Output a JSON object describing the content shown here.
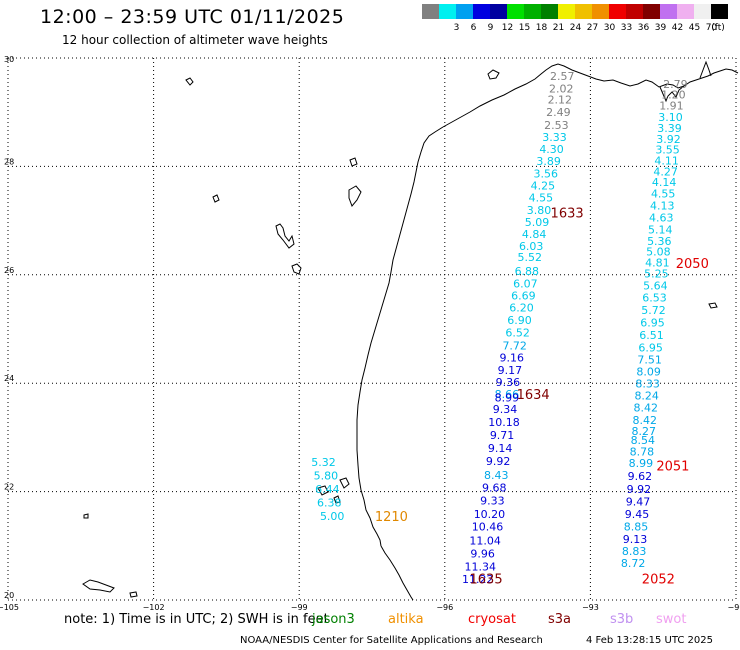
{
  "header": {
    "title": "12:00 – 23:59 UTC 01/11/2025",
    "subtitle": "12 hour collection of altimeter wave heights"
  },
  "legend": {
    "unit": "(ft)",
    "bins": [
      {
        "color": "#808080",
        "label": ""
      },
      {
        "color": "#00f0f0",
        "label": "3"
      },
      {
        "color": "#00a0f0",
        "label": "6"
      },
      {
        "color": "#0000e0",
        "label": "9"
      },
      {
        "color": "#0000a0",
        "label": "12"
      },
      {
        "color": "#00e000",
        "label": "15"
      },
      {
        "color": "#00b000",
        "label": "18"
      },
      {
        "color": "#008000",
        "label": "21"
      },
      {
        "color": "#f0f000",
        "label": "24"
      },
      {
        "color": "#f0c000",
        "label": "27"
      },
      {
        "color": "#f09000",
        "label": "30"
      },
      {
        "color": "#f00000",
        "label": "33"
      },
      {
        "color": "#c00000",
        "label": "36"
      },
      {
        "color": "#800000",
        "label": "39"
      },
      {
        "color": "#c070f0",
        "label": "42"
      },
      {
        "color": "#f0b0f0",
        "label": "45"
      },
      {
        "color": "#f0f0f0",
        "label": "70"
      },
      {
        "color": "#000000",
        "label": ""
      }
    ]
  },
  "axes": {
    "lon_ticks": [
      "−105",
      "−102",
      "−99",
      "−96",
      "−93",
      "−90"
    ],
    "lat_ticks": [
      "30",
      "28",
      "26",
      "24",
      "22",
      "20"
    ]
  },
  "tracks": [
    {
      "name": "track-east",
      "points": [
        {
          "lat": 29.52,
          "lon": -91.25,
          "v": "2.79",
          "c": "#808080"
        },
        {
          "lat": 29.33,
          "lon": -91.29,
          "v": "1.20",
          "c": "#808080"
        },
        {
          "lat": 29.12,
          "lon": -91.33,
          "v": "1.91",
          "c": "#808080"
        },
        {
          "lat": 28.91,
          "lon": -91.35,
          "v": "3.10",
          "c": "#00c8e8"
        },
        {
          "lat": 28.71,
          "lon": -91.37,
          "v": "3.39",
          "c": "#00c8e8"
        },
        {
          "lat": 28.51,
          "lon": -91.39,
          "v": "3.92",
          "c": "#00c8e8"
        },
        {
          "lat": 28.31,
          "lon": -91.41,
          "v": "3.55",
          "c": "#00c8e8"
        },
        {
          "lat": 28.11,
          "lon": -91.43,
          "v": "4.11",
          "c": "#00c8e8"
        },
        {
          "lat": 27.91,
          "lon": -91.45,
          "v": "4.27",
          "c": "#00c8e8"
        },
        {
          "lat": 27.71,
          "lon": -91.48,
          "v": "4.14",
          "c": "#00c8e8"
        },
        {
          "lat": 27.5,
          "lon": -91.5,
          "v": "4.55",
          "c": "#00c8e8"
        },
        {
          "lat": 27.28,
          "lon": -91.52,
          "v": "4.13",
          "c": "#00c8e8"
        },
        {
          "lat": 27.06,
          "lon": -91.54,
          "v": "4.63",
          "c": "#00c8e8"
        },
        {
          "lat": 26.84,
          "lon": -91.56,
          "v": "5.14",
          "c": "#00c8e8"
        },
        {
          "lat": 26.62,
          "lon": -91.58,
          "v": "5.36",
          "c": "#00c8e8"
        },
        {
          "lat": 26.43,
          "lon": -91.6,
          "v": "5.08",
          "c": "#00c8e8"
        },
        {
          "lat": 26.23,
          "lon": -91.62,
          "v": "4.81",
          "c": "#00c8e8"
        },
        {
          "lat": 26.02,
          "lon": -91.64,
          "v": "5.25",
          "c": "#00c8e8"
        },
        {
          "lat": 25.8,
          "lon": -91.66,
          "v": "5.64",
          "c": "#00c8e8"
        },
        {
          "lat": 25.58,
          "lon": -91.68,
          "v": "6.53",
          "c": "#00c8e8"
        },
        {
          "lat": 25.35,
          "lon": -91.7,
          "v": "5.72",
          "c": "#00c8e8"
        },
        {
          "lat": 25.12,
          "lon": -91.72,
          "v": "6.95",
          "c": "#00c8e8"
        },
        {
          "lat": 24.89,
          "lon": -91.74,
          "v": "6.51",
          "c": "#00c8e8"
        },
        {
          "lat": 24.66,
          "lon": -91.76,
          "v": "6.95",
          "c": "#00c8e8"
        },
        {
          "lat": 24.44,
          "lon": -91.78,
          "v": "7.51",
          "c": "#00a8e8"
        },
        {
          "lat": 24.22,
          "lon": -91.8,
          "v": "8.09",
          "c": "#00a8e8"
        },
        {
          "lat": 23.99,
          "lon": -91.82,
          "v": "8.33",
          "c": "#00a8e8"
        },
        {
          "lat": 23.77,
          "lon": -91.84,
          "v": "8.24",
          "c": "#00a8e8"
        },
        {
          "lat": 23.55,
          "lon": -91.86,
          "v": "8.42",
          "c": "#00a8e8"
        },
        {
          "lat": 23.32,
          "lon": -91.88,
          "v": "8.42",
          "c": "#00a8e8"
        },
        {
          "lat": 23.12,
          "lon": -91.9,
          "v": "8.27",
          "c": "#00a8e8"
        },
        {
          "lat": 22.95,
          "lon": -91.92,
          "v": "8.54",
          "c": "#00a8e8"
        },
        {
          "lat": 22.74,
          "lon": -91.94,
          "v": "8.78",
          "c": "#00a8e8"
        },
        {
          "lat": 22.53,
          "lon": -91.96,
          "v": "8.99",
          "c": "#00a8e8"
        },
        {
          "lat": 22.29,
          "lon": -91.98,
          "v": "9.62",
          "c": "#0000d8"
        },
        {
          "lat": 22.05,
          "lon": -92.0,
          "v": "9.92",
          "c": "#0000d8"
        },
        {
          "lat": 21.82,
          "lon": -92.02,
          "v": "9.47",
          "c": "#0000d8"
        },
        {
          "lat": 21.59,
          "lon": -92.04,
          "v": "9.45",
          "c": "#0000d8"
        },
        {
          "lat": 21.36,
          "lon": -92.06,
          "v": "8.85",
          "c": "#00a8e8"
        },
        {
          "lat": 21.13,
          "lon": -92.08,
          "v": "9.13",
          "c": "#0000d8"
        },
        {
          "lat": 20.9,
          "lon": -92.1,
          "v": "8.83",
          "c": "#00a8e8"
        },
        {
          "lat": 20.68,
          "lon": -92.12,
          "v": "8.72",
          "c": "#00a8e8"
        }
      ]
    },
    {
      "name": "track-center",
      "points": [
        {
          "lat": 29.67,
          "lon": -93.58,
          "v": "2.57",
          "c": "#808080"
        },
        {
          "lat": 29.44,
          "lon": -93.6,
          "v": "2.02",
          "c": "#808080"
        },
        {
          "lat": 29.23,
          "lon": -93.63,
          "v": "2.12",
          "c": "#808080"
        },
        {
          "lat": 29.0,
          "lon": -93.66,
          "v": "2.49",
          "c": "#808080"
        },
        {
          "lat": 28.76,
          "lon": -93.7,
          "v": "2.53",
          "c": "#808080"
        },
        {
          "lat": 28.54,
          "lon": -93.74,
          "v": "3.33",
          "c": "#00c8e8"
        },
        {
          "lat": 28.32,
          "lon": -93.8,
          "v": "4.30",
          "c": "#00c8e8"
        },
        {
          "lat": 28.1,
          "lon": -93.86,
          "v": "3.89",
          "c": "#00c8e8"
        },
        {
          "lat": 27.87,
          "lon": -93.92,
          "v": "3.56",
          "c": "#00c8e8"
        },
        {
          "lat": 27.65,
          "lon": -93.98,
          "v": "4.25",
          "c": "#00c8e8"
        },
        {
          "lat": 27.43,
          "lon": -94.02,
          "v": "4.55",
          "c": "#00c8e8"
        },
        {
          "lat": 27.2,
          "lon": -94.06,
          "v": "3.80",
          "c": "#00c8e8"
        },
        {
          "lat": 26.97,
          "lon": -94.1,
          "v": "5.09",
          "c": "#00c8e8"
        },
        {
          "lat": 26.75,
          "lon": -94.16,
          "v": "4.84",
          "c": "#00c8e8"
        },
        {
          "lat": 26.53,
          "lon": -94.22,
          "v": "6.03",
          "c": "#00c8e8"
        },
        {
          "lat": 26.33,
          "lon": -94.25,
          "v": "5.52",
          "c": "#00c8e8"
        },
        {
          "lat": 26.07,
          "lon": -94.31,
          "v": "6.88",
          "c": "#00c8e8"
        },
        {
          "lat": 25.84,
          "lon": -94.34,
          "v": "6.07",
          "c": "#00c8e8"
        },
        {
          "lat": 25.62,
          "lon": -94.38,
          "v": "6.69",
          "c": "#00c8e8"
        },
        {
          "lat": 25.4,
          "lon": -94.42,
          "v": "6.20",
          "c": "#00c8e8"
        },
        {
          "lat": 25.17,
          "lon": -94.46,
          "v": "6.90",
          "c": "#00c8e8"
        },
        {
          "lat": 24.94,
          "lon": -94.5,
          "v": "6.52",
          "c": "#00c8e8"
        },
        {
          "lat": 24.7,
          "lon": -94.56,
          "v": "7.72",
          "c": "#00a8e8"
        },
        {
          "lat": 24.47,
          "lon": -94.62,
          "v": "9.16",
          "c": "#0000d8"
        },
        {
          "lat": 24.24,
          "lon": -94.66,
          "v": "9.17",
          "c": "#0000d8"
        },
        {
          "lat": 24.02,
          "lon": -94.7,
          "v": "9.36",
          "c": "#0000d8"
        },
        {
          "lat": 23.8,
          "lon": -94.72,
          "v": "8.66",
          "c": "#00a8e8"
        },
        {
          "lat": 23.74,
          "lon": -94.72,
          "v": "8.99",
          "c": "#0000d8"
        },
        {
          "lat": 23.52,
          "lon": -94.76,
          "v": "9.34",
          "c": "#0000d8"
        },
        {
          "lat": 23.28,
          "lon": -94.78,
          "v": "10.18",
          "c": "#0000d8"
        },
        {
          "lat": 23.04,
          "lon": -94.82,
          "v": "9.71",
          "c": "#0000d8"
        },
        {
          "lat": 22.8,
          "lon": -94.86,
          "v": "9.14",
          "c": "#0000d8"
        },
        {
          "lat": 22.56,
          "lon": -94.9,
          "v": "9.92",
          "c": "#0000d8"
        },
        {
          "lat": 22.31,
          "lon": -94.94,
          "v": "8.43",
          "c": "#00a8e8"
        },
        {
          "lat": 22.08,
          "lon": -94.98,
          "v": "9.68",
          "c": "#0000d8"
        },
        {
          "lat": 21.84,
          "lon": -95.02,
          "v": "9.33",
          "c": "#0000d8"
        },
        {
          "lat": 21.59,
          "lon": -95.08,
          "v": "10.20",
          "c": "#0000d8"
        },
        {
          "lat": 21.36,
          "lon": -95.12,
          "v": "10.46",
          "c": "#0000d8"
        },
        {
          "lat": 21.1,
          "lon": -95.17,
          "v": "11.04",
          "c": "#0000d8"
        },
        {
          "lat": 20.86,
          "lon": -95.22,
          "v": "9.96",
          "c": "#0000d8"
        },
        {
          "lat": 20.62,
          "lon": -95.27,
          "v": "11.34",
          "c": "#0000d8"
        },
        {
          "lat": 20.39,
          "lon": -95.32,
          "v": "11.22",
          "c": "#0000d8"
        }
      ]
    },
    {
      "name": "track-coastal",
      "points": [
        {
          "lat": 22.55,
          "lon": -98.5,
          "v": "5.32",
          "c": "#00c8e8"
        },
        {
          "lat": 22.3,
          "lon": -98.45,
          "v": "5.80",
          "c": "#00c8e8"
        },
        {
          "lat": 22.05,
          "lon": -98.42,
          "v": "6.44",
          "c": "#00c8e8"
        },
        {
          "lat": 21.8,
          "lon": -98.38,
          "v": "6.38",
          "c": "#00c8e8"
        },
        {
          "lat": 21.55,
          "lon": -98.32,
          "v": "5.00",
          "c": "#00c8e8"
        }
      ]
    }
  ],
  "time_labels": [
    {
      "lat": 27.15,
      "lon": -93.48,
      "v": "1633",
      "c": "#800000"
    },
    {
      "lat": 23.8,
      "lon": -94.18,
      "v": "1634",
      "c": "#800000"
    },
    {
      "lat": 20.4,
      "lon": -95.15,
      "v": "1635",
      "c": "#800000"
    },
    {
      "lat": 26.22,
      "lon": -90.9,
      "v": "2050",
      "c": "#e00000"
    },
    {
      "lat": 22.48,
      "lon": -91.3,
      "v": "2051",
      "c": "#e00000"
    },
    {
      "lat": 20.4,
      "lon": -91.6,
      "v": "2052",
      "c": "#e00000"
    },
    {
      "lat": 21.55,
      "lon": -97.1,
      "v": "1210",
      "c": "#e08800"
    }
  ],
  "note": {
    "text": "note: 1) Time is in UTC; 2) SWH is in feet"
  },
  "satellites": [
    {
      "name": "jason3",
      "color": "#008000"
    },
    {
      "name": "altika",
      "color": "#f09000"
    },
    {
      "name": "cryosat",
      "color": "#f00000"
    },
    {
      "name": "s3a",
      "color": "#800000"
    },
    {
      "name": "s3b",
      "color": "#c090f0"
    },
    {
      "name": "swot",
      "color": "#f0a0f0"
    }
  ],
  "footer": {
    "credit": "NOAA/NESDIS Center for Satellite Applications and Research",
    "timestamp": "4 Feb 13:28:15 UTC 2025"
  }
}
